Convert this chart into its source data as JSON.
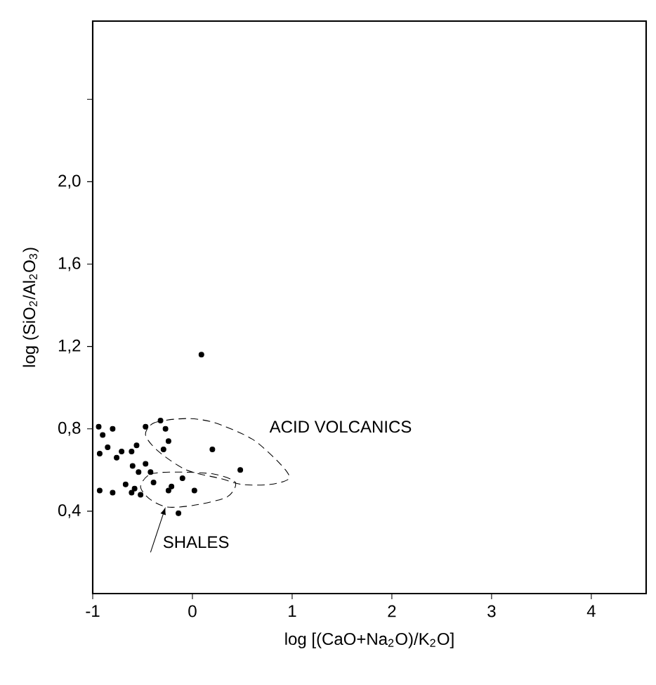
{
  "chart_data": {
    "type": "scatter",
    "xlabel": "log [(CaO+Na$_{2}$O)/K$_{2}$O]",
    "ylabel": "log (SiO$_{2}$/Al$_{2}$O$_{3}$)",
    "xlim": [
      -1,
      4.55
    ],
    "ylim": [
      0,
      2.78
    ],
    "xticks": [
      {
        "value": -1,
        "label": "-1"
      },
      0,
      1,
      2,
      3,
      4
    ],
    "yticks": [
      {
        "value": 0.4,
        "label": "0,4"
      },
      {
        "value": 0.8,
        "label": "0,8"
      },
      {
        "value": 1.2,
        "label": "1,2"
      },
      {
        "value": 1.6,
        "label": "1,6"
      },
      {
        "value": 2.0,
        "label": "2,0"
      },
      {
        "value": 2.4,
        "label": null
      }
    ],
    "marker": "circle",
    "series": [
      {
        "color": "#000000",
        "x": [
          -0.94,
          -0.8,
          -0.9,
          -0.47,
          -0.32,
          -0.27,
          -0.24,
          -0.29,
          -0.85,
          -0.71,
          -0.93,
          -0.76,
          -0.61,
          -0.56,
          -0.47,
          -0.6,
          -0.54,
          -0.42,
          0.2,
          0.48,
          0.09,
          -0.93,
          -0.8,
          -0.67,
          -0.61,
          -0.58,
          -0.52,
          -0.39,
          -0.24,
          -0.21,
          -0.1,
          0.02,
          -0.14
        ],
        "values": [
          0.81,
          0.8,
          0.77,
          0.81,
          0.84,
          0.8,
          0.74,
          0.7,
          0.71,
          0.69,
          0.68,
          0.66,
          0.69,
          0.72,
          0.63,
          0.62,
          0.59,
          0.59,
          0.7,
          0.6,
          1.16,
          0.5,
          0.49,
          0.53,
          0.49,
          0.51,
          0.48,
          0.54,
          0.5,
          0.52,
          0.56,
          0.5,
          0.39
        ]
      }
    ],
    "annotations": [
      "ACID VOLCANICS",
      "SHALES"
    ]
  }
}
